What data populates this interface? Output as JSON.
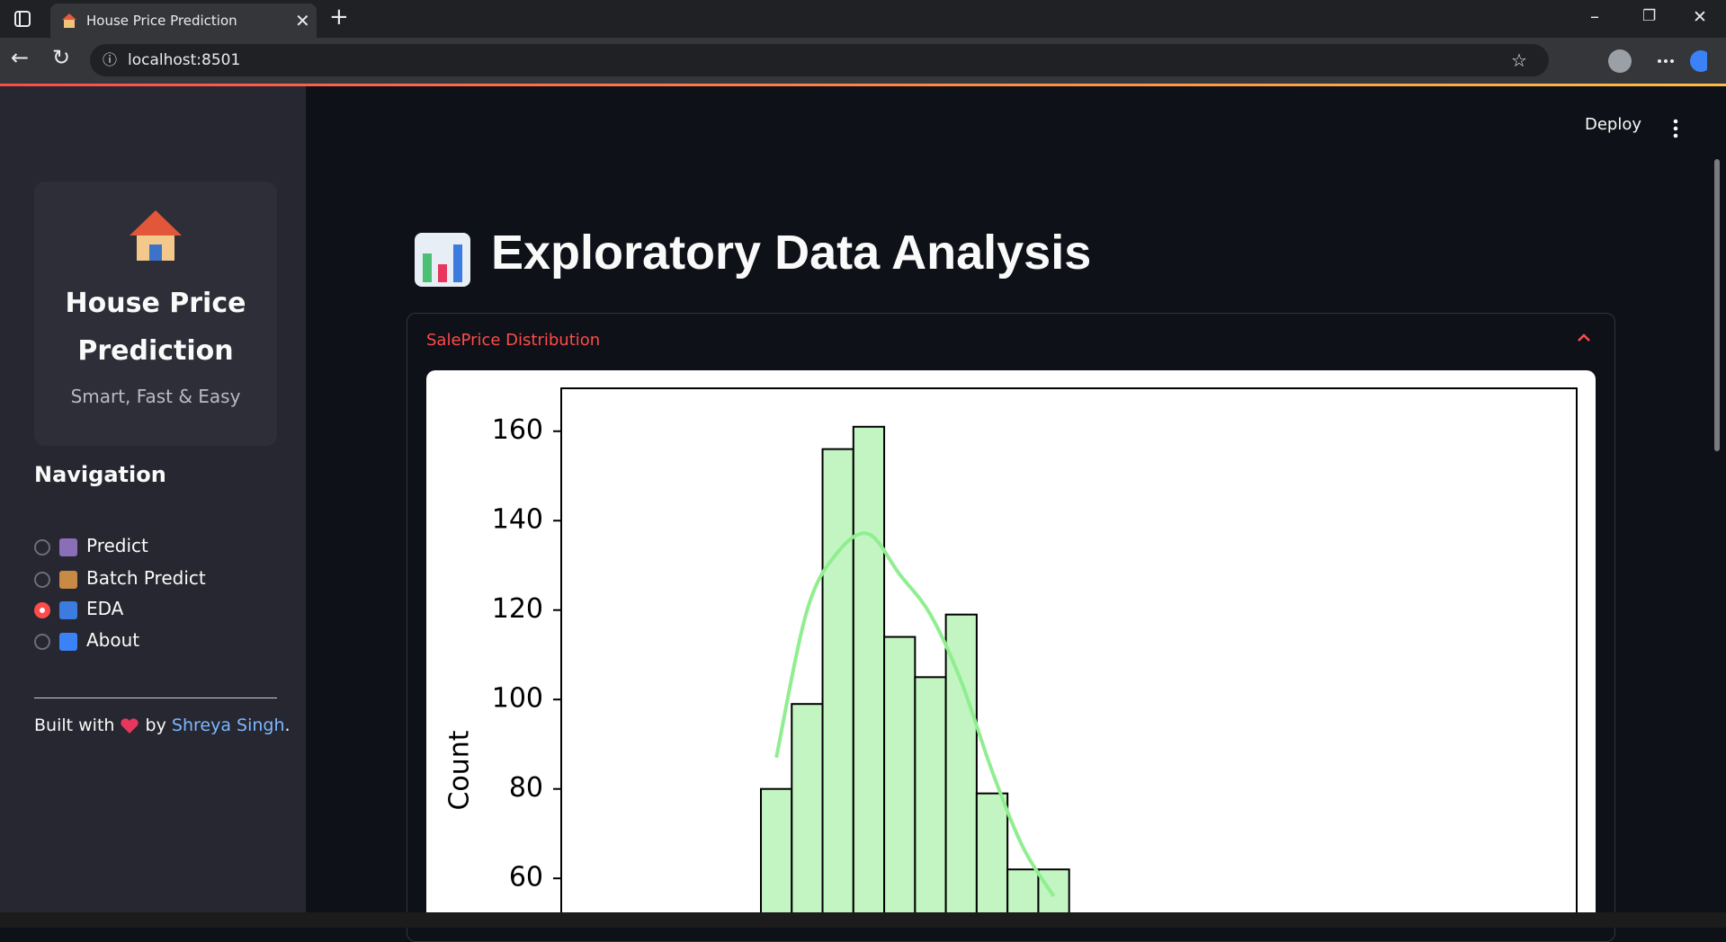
{
  "browser": {
    "tab_title": "House Price Prediction",
    "url": "localhost:8501"
  },
  "header": {
    "deploy": "Deploy"
  },
  "sidebar": {
    "title_line1": "House Price",
    "title_line2": "Prediction",
    "tagline": "Smart, Fast & Easy",
    "nav_heading": "Navigation",
    "nav_items": [
      {
        "label": "Predict",
        "selected": false
      },
      {
        "label": "Batch Predict",
        "selected": false
      },
      {
        "label": "EDA",
        "selected": true
      },
      {
        "label": "About",
        "selected": false
      }
    ],
    "footer": {
      "prefix": "Built with",
      "by": "by",
      "author": "Shreya Singh",
      "suffix": "."
    }
  },
  "main": {
    "title": "Exploratory Data Analysis",
    "expander": "SalePrice Distribution"
  },
  "chart_data": {
    "type": "bar",
    "ylabel": "Count",
    "categories": [
      null,
      null,
      null,
      null,
      null,
      null,
      null,
      null,
      null,
      null
    ],
    "series": [
      {
        "type": "bar",
        "color": "#c2f5c2",
        "values": [
          80,
          99,
          156,
          161,
          114,
          105,
          119,
          79,
          62,
          62
        ]
      },
      {
        "type": "line",
        "color": "#90ee90",
        "values": [
          87,
          120,
          133,
          137,
          128,
          119,
          104,
          84,
          67,
          56
        ]
      }
    ],
    "ylim": [
      52,
      170
    ],
    "yticks": [
      60,
      80,
      100,
      120,
      140,
      160
    ],
    "grid": false
  }
}
